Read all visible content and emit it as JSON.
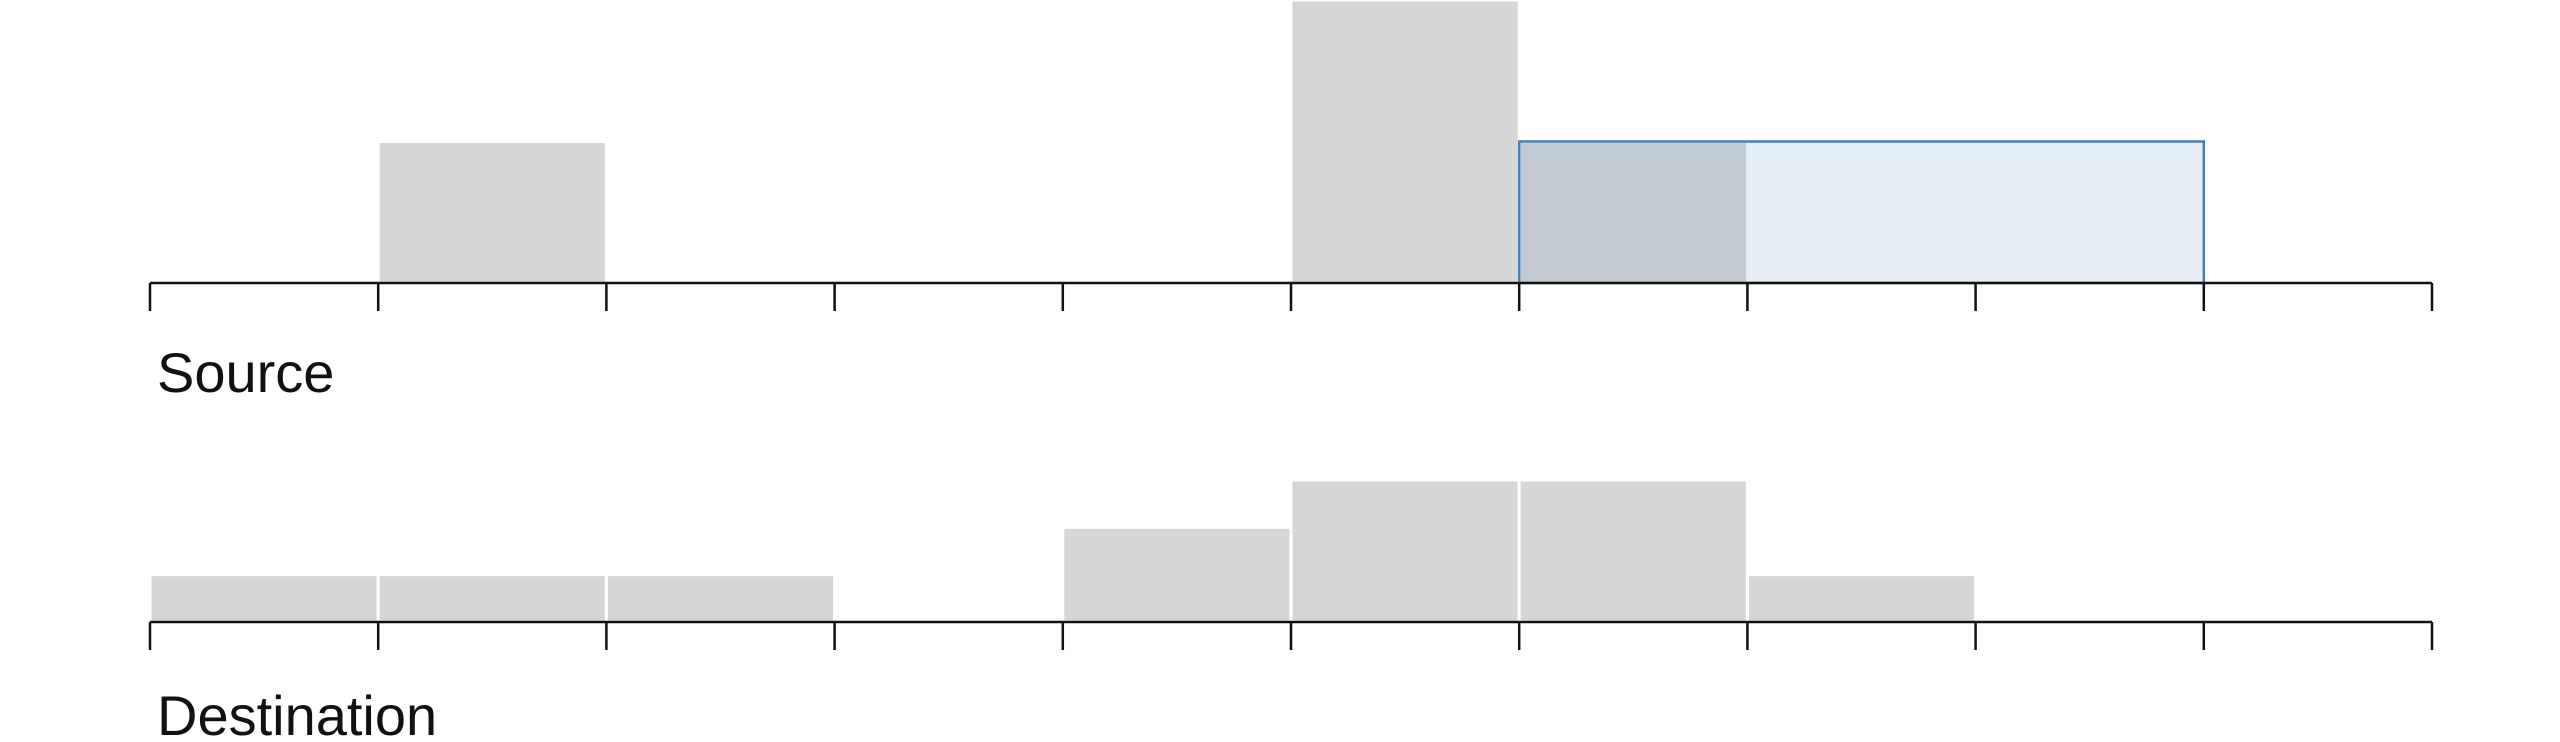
{
  "chart_data": [
    {
      "type": "histogram",
      "title": "Source",
      "bins": [
        0,
        1,
        2,
        3,
        4,
        5,
        6,
        7,
        8,
        9,
        10
      ],
      "values": [
        0,
        1,
        0,
        0,
        0,
        2,
        1,
        0,
        0,
        0
      ],
      "ylim": [
        0,
        2
      ],
      "color": "#d6d6d6",
      "selection": [
        6,
        9
      ],
      "selection_color": "#4a7fb0"
    },
    {
      "type": "histogram",
      "title": "Destination",
      "bins": [
        0,
        1,
        2,
        3,
        4,
        5,
        6,
        7,
        8,
        9,
        10
      ],
      "values": [
        1,
        1,
        1,
        0,
        2,
        3,
        3,
        1,
        0,
        0
      ],
      "ylim": [
        0,
        6
      ],
      "color": "#d6d6d6"
    }
  ]
}
